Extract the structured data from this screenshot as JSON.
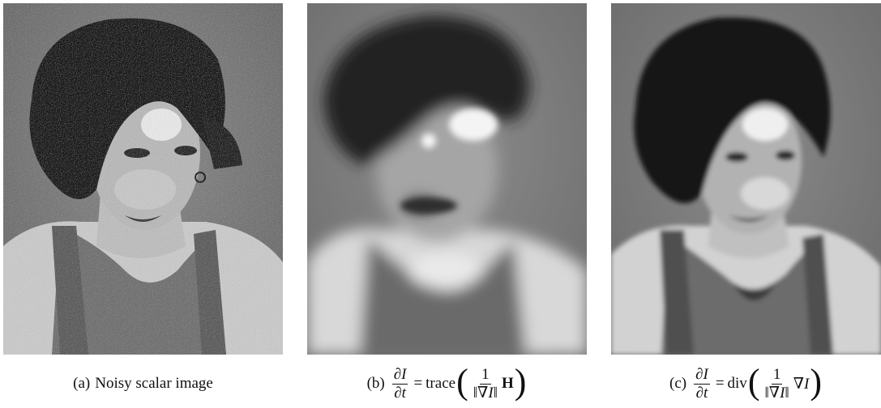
{
  "panels": [
    {
      "id": "a",
      "caption_label": "(a)",
      "caption_text": "Noisy scalar image"
    },
    {
      "id": "b",
      "caption_label": "(b)",
      "lhs_num": "∂I",
      "lhs_den": "∂t",
      "equals": "=",
      "operator": "trace",
      "inner_num": "1",
      "inner_den": "‖∇I‖",
      "tail": "H"
    },
    {
      "id": "c",
      "caption_label": "(c)",
      "lhs_num": "∂I",
      "lhs_den": "∂t",
      "equals": "=",
      "operator": "div",
      "inner_num": "1",
      "inner_den": "‖∇I‖",
      "tail": "∇I"
    }
  ],
  "colors": {
    "background": "#808080",
    "hair": "#161616",
    "skin": "#d6d6d6",
    "highlight": "#f2f2f2",
    "shirt": "#6e6e6e"
  }
}
